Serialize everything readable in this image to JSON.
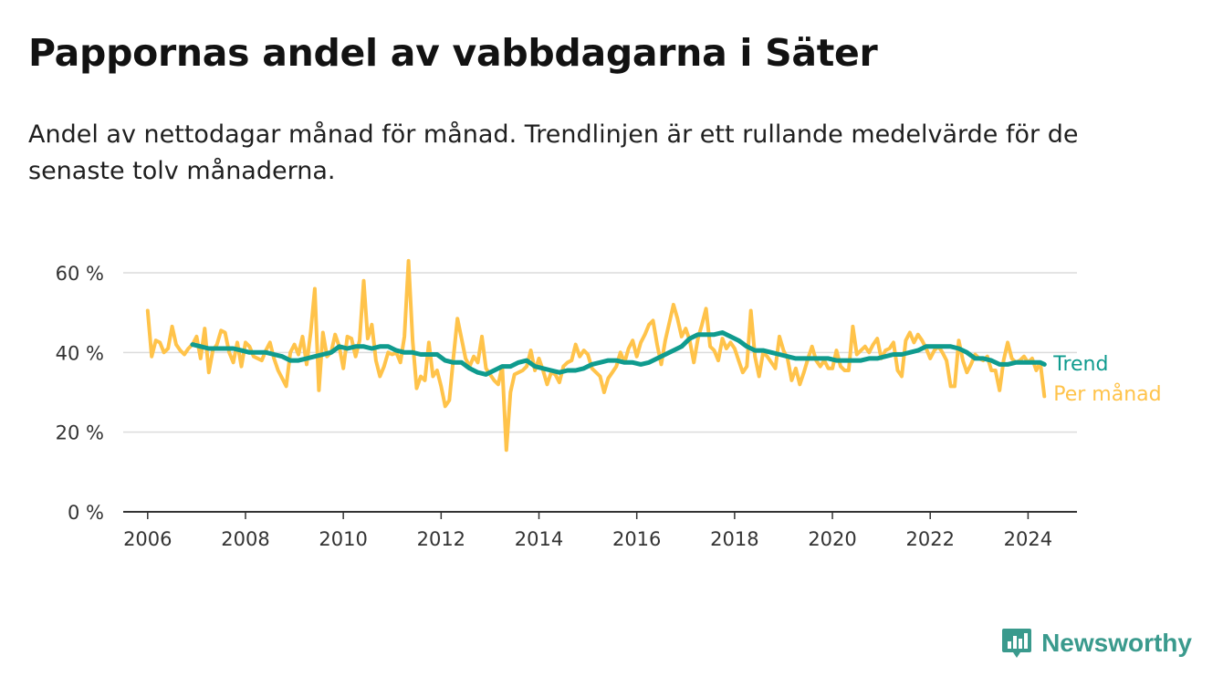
{
  "title": "Pappornas andel av vabbdagarna i Säter",
  "subtitle": "Andel av nettodagar månad för månad. Trendlinjen är ett rullande medelvärde för de senaste tolv månaderna.",
  "brand": {
    "name": "Newsworthy",
    "color": "#3a9a8d",
    "icon": "bar-chart-logo-icon"
  },
  "chart_data": {
    "type": "line",
    "title": "Pappornas andel av vabbdagarna i Säter",
    "xlabel": "",
    "ylabel": "",
    "xlim": [
      2005.5,
      2025.0
    ],
    "ylim": [
      0,
      60
    ],
    "x_ticks": [
      2006,
      2008,
      2010,
      2012,
      2014,
      2016,
      2018,
      2020,
      2022,
      2024
    ],
    "x_tick_labels": [
      "2006",
      "2008",
      "2010",
      "2012",
      "2014",
      "2016",
      "2018",
      "2020",
      "2022",
      "2024"
    ],
    "y_ticks": [
      0,
      20,
      40,
      60
    ],
    "y_tick_labels": [
      "0 %",
      "20 %",
      "40 %",
      "60 %"
    ],
    "grid": "horizontal",
    "series": [
      {
        "name": "Per månad",
        "color": "#ffc34a",
        "x": [
          2006.0,
          2006.083,
          2006.167,
          2006.25,
          2006.333,
          2006.417,
          2006.5,
          2006.583,
          2006.667,
          2006.75,
          2006.833,
          2006.917,
          2007.0,
          2007.083,
          2007.167,
          2007.25,
          2007.333,
          2007.417,
          2007.5,
          2007.583,
          2007.667,
          2007.75,
          2007.833,
          2007.917,
          2008.0,
          2008.083,
          2008.167,
          2008.25,
          2008.333,
          2008.417,
          2008.5,
          2008.583,
          2008.667,
          2008.75,
          2008.833,
          2008.917,
          2009.0,
          2009.083,
          2009.167,
          2009.25,
          2009.333,
          2009.417,
          2009.5,
          2009.583,
          2009.667,
          2009.75,
          2009.833,
          2009.917,
          2010.0,
          2010.083,
          2010.167,
          2010.25,
          2010.333,
          2010.417,
          2010.5,
          2010.583,
          2010.667,
          2010.75,
          2010.833,
          2010.917,
          2011.0,
          2011.083,
          2011.167,
          2011.25,
          2011.333,
          2011.417,
          2011.5,
          2011.583,
          2011.667,
          2011.75,
          2011.833,
          2011.917,
          2012.0,
          2012.083,
          2012.167,
          2012.25,
          2012.333,
          2012.417,
          2012.5,
          2012.583,
          2012.667,
          2012.75,
          2012.833,
          2012.917,
          2013.0,
          2013.083,
          2013.167,
          2013.25,
          2013.333,
          2013.417,
          2013.5,
          2013.583,
          2013.667,
          2013.75,
          2013.833,
          2013.917,
          2014.0,
          2014.083,
          2014.167,
          2014.25,
          2014.333,
          2014.417,
          2014.5,
          2014.583,
          2014.667,
          2014.75,
          2014.833,
          2014.917,
          2015.0,
          2015.083,
          2015.167,
          2015.25,
          2015.333,
          2015.417,
          2015.5,
          2015.583,
          2015.667,
          2015.75,
          2015.833,
          2015.917,
          2016.0,
          2016.083,
          2016.167,
          2016.25,
          2016.333,
          2016.417,
          2016.5,
          2016.583,
          2016.667,
          2016.75,
          2016.833,
          2016.917,
          2017.0,
          2017.083,
          2017.167,
          2017.25,
          2017.333,
          2017.417,
          2017.5,
          2017.583,
          2017.667,
          2017.75,
          2017.833,
          2017.917,
          2018.0,
          2018.083,
          2018.167,
          2018.25,
          2018.333,
          2018.417,
          2018.5,
          2018.583,
          2018.667,
          2018.75,
          2018.833,
          2018.917,
          2019.0,
          2019.083,
          2019.167,
          2019.25,
          2019.333,
          2019.417,
          2019.5,
          2019.583,
          2019.667,
          2019.75,
          2019.833,
          2019.917,
          2020.0,
          2020.083,
          2020.167,
          2020.25,
          2020.333,
          2020.417,
          2020.5,
          2020.583,
          2020.667,
          2020.75,
          2020.833,
          2020.917,
          2021.0,
          2021.083,
          2021.167,
          2021.25,
          2021.333,
          2021.417,
          2021.5,
          2021.583,
          2021.667,
          2021.75,
          2021.833,
          2021.917,
          2022.0,
          2022.083,
          2022.167,
          2022.25,
          2022.333,
          2022.417,
          2022.5,
          2022.583,
          2022.667,
          2022.75,
          2022.833,
          2022.917,
          2023.0,
          2023.083,
          2023.167,
          2023.25,
          2023.333,
          2023.417,
          2023.5,
          2023.583,
          2023.667,
          2023.75,
          2023.833,
          2023.917,
          2024.0,
          2024.083,
          2024.167,
          2024.25,
          2024.333
        ],
        "values": [
          50.5,
          39.0,
          43.0,
          42.5,
          40.0,
          41.0,
          46.5,
          42.0,
          40.5,
          39.5,
          41.0,
          42.0,
          44.0,
          38.5,
          46.0,
          35.0,
          40.5,
          42.0,
          45.5,
          45.0,
          40.0,
          37.5,
          42.5,
          36.5,
          42.5,
          41.5,
          39.0,
          38.5,
          38.0,
          40.5,
          42.5,
          38.5,
          35.5,
          33.5,
          31.5,
          40.0,
          42.0,
          39.5,
          44.0,
          37.0,
          45.0,
          56.0,
          30.5,
          45.0,
          39.0,
          40.0,
          44.5,
          41.5,
          36.0,
          44.0,
          43.5,
          39.0,
          43.0,
          58.0,
          43.5,
          47.0,
          38.0,
          34.0,
          36.5,
          40.0,
          39.5,
          40.0,
          37.5,
          44.0,
          63.0,
          43.0,
          31.0,
          34.0,
          33.0,
          42.5,
          34.0,
          35.5,
          31.5,
          26.5,
          28.0,
          38.5,
          48.5,
          43.5,
          38.5,
          36.5,
          39.0,
          37.5,
          44.0,
          36.0,
          34.5,
          33.0,
          32.0,
          36.5,
          15.5,
          30.0,
          34.5,
          35.0,
          35.5,
          36.5,
          40.5,
          35.5,
          38.5,
          35.5,
          32.0,
          35.0,
          34.5,
          32.5,
          36.5,
          37.5,
          38.0,
          42.0,
          39.0,
          40.5,
          39.5,
          36.0,
          35.0,
          34.0,
          30.0,
          33.5,
          35.0,
          36.5,
          40.0,
          37.5,
          41.0,
          43.0,
          39.0,
          42.5,
          44.5,
          47.0,
          48.0,
          42.0,
          37.0,
          43.0,
          47.5,
          52.0,
          48.5,
          44.0,
          46.0,
          43.0,
          37.5,
          43.5,
          47.0,
          51.0,
          41.5,
          40.5,
          38.0,
          43.5,
          41.0,
          42.5,
          41.0,
          38.0,
          35.0,
          36.5,
          50.5,
          39.0,
          34.0,
          40.0,
          39.0,
          37.5,
          36.0,
          44.0,
          40.5,
          38.5,
          33.0,
          36.0,
          32.0,
          35.0,
          38.5,
          41.5,
          38.0,
          36.5,
          38.0,
          36.0,
          36.0,
          40.5,
          36.5,
          35.5,
          35.5,
          46.5,
          39.5,
          40.5,
          41.5,
          40.0,
          42.0,
          43.5,
          38.5,
          40.5,
          41.0,
          42.5,
          35.5,
          34.0,
          43.0,
          45.0,
          42.5,
          44.5,
          43.0,
          41.0,
          38.5,
          40.5,
          41.5,
          40.0,
          38.0,
          31.5,
          31.5,
          43.0,
          38.0,
          35.0,
          37.0,
          39.5,
          38.5,
          38.0,
          39.0,
          35.5,
          35.5,
          30.5,
          38.0,
          42.5,
          38.5,
          37.5,
          38.0,
          39.0,
          37.5,
          38.5,
          35.5,
          37.5,
          29.0
        ]
      },
      {
        "name": "Trend",
        "color": "#0f9b8e",
        "x": [
          2006.917,
          2007.083,
          2007.25,
          2007.417,
          2007.583,
          2007.75,
          2007.917,
          2008.083,
          2008.25,
          2008.417,
          2008.583,
          2008.75,
          2008.917,
          2009.083,
          2009.25,
          2009.417,
          2009.583,
          2009.75,
          2009.917,
          2010.083,
          2010.25,
          2010.417,
          2010.583,
          2010.75,
          2010.917,
          2011.083,
          2011.25,
          2011.417,
          2011.583,
          2011.75,
          2011.917,
          2012.083,
          2012.25,
          2012.417,
          2012.583,
          2012.75,
          2012.917,
          2013.083,
          2013.25,
          2013.417,
          2013.583,
          2013.75,
          2013.917,
          2014.083,
          2014.25,
          2014.417,
          2014.583,
          2014.75,
          2014.917,
          2015.083,
          2015.25,
          2015.417,
          2015.583,
          2015.75,
          2015.917,
          2016.083,
          2016.25,
          2016.417,
          2016.583,
          2016.75,
          2016.917,
          2017.083,
          2017.25,
          2017.417,
          2017.583,
          2017.75,
          2017.917,
          2018.083,
          2018.25,
          2018.417,
          2018.583,
          2018.75,
          2018.917,
          2019.083,
          2019.25,
          2019.417,
          2019.583,
          2019.75,
          2019.917,
          2020.083,
          2020.25,
          2020.417,
          2020.583,
          2020.75,
          2020.917,
          2021.083,
          2021.25,
          2021.417,
          2021.583,
          2021.75,
          2021.917,
          2022.083,
          2022.25,
          2022.417,
          2022.583,
          2022.75,
          2022.917,
          2023.083,
          2023.25,
          2023.417,
          2023.583,
          2023.75,
          2023.917,
          2024.083,
          2024.25,
          2024.333
        ],
        "values": [
          42.0,
          41.5,
          41.0,
          41.0,
          41.0,
          41.0,
          40.5,
          40.0,
          40.0,
          40.0,
          39.5,
          39.0,
          38.0,
          38.0,
          38.5,
          39.0,
          39.5,
          40.0,
          41.5,
          41.0,
          41.5,
          41.5,
          41.0,
          41.5,
          41.5,
          40.5,
          40.0,
          40.0,
          39.5,
          39.5,
          39.5,
          38.0,
          37.5,
          37.5,
          36.0,
          35.0,
          34.5,
          35.5,
          36.5,
          36.5,
          37.5,
          38.0,
          36.5,
          36.0,
          35.5,
          35.0,
          35.5,
          35.5,
          36.0,
          37.0,
          37.5,
          38.0,
          38.0,
          37.5,
          37.5,
          37.0,
          37.5,
          38.5,
          39.5,
          40.5,
          41.5,
          43.5,
          44.5,
          44.5,
          44.5,
          45.0,
          44.0,
          43.0,
          41.5,
          40.5,
          40.5,
          40.0,
          39.5,
          39.0,
          38.5,
          38.5,
          38.5,
          38.5,
          38.5,
          38.0,
          38.0,
          38.0,
          38.0,
          38.5,
          38.5,
          39.0,
          39.5,
          39.5,
          40.0,
          40.5,
          41.5,
          41.5,
          41.5,
          41.5,
          41.0,
          40.0,
          38.5,
          38.5,
          38.0,
          37.0,
          37.0,
          37.5,
          37.5,
          37.5,
          37.5,
          37.0
        ]
      }
    ]
  }
}
